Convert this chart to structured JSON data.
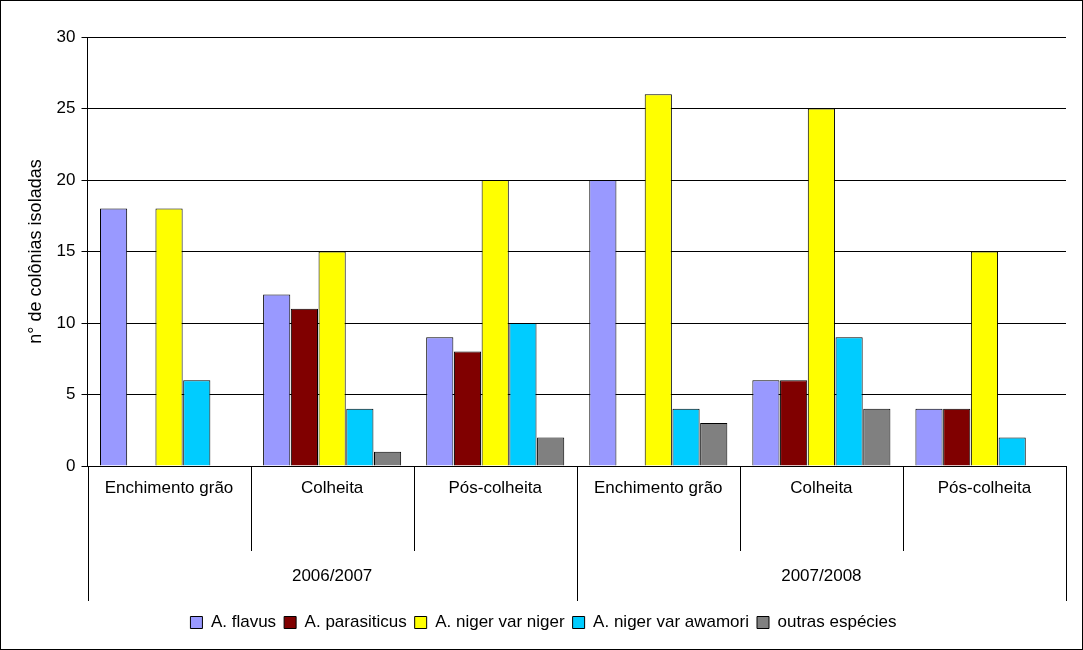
{
  "chart_data": {
    "type": "bar",
    "ylabel": "n° de colônias isoladas",
    "categories": [
      "Enchimento grão",
      "Colheita",
      "Pós-colheita",
      "Enchimento grão",
      "Colheita",
      "Pós-colheita"
    ],
    "annotations": [
      "2006/2007",
      "2007/2008"
    ],
    "series": [
      {
        "name": "A. flavus",
        "color": "#9999ff",
        "values": [
          18,
          12,
          9,
          20,
          6,
          4
        ]
      },
      {
        "name": "A. parasiticus",
        "color": "#800000",
        "values": [
          0,
          11,
          8,
          0,
          6,
          4
        ]
      },
      {
        "name": "A. niger var niger",
        "color": "#ffff00",
        "values": [
          18,
          15,
          20,
          26,
          25,
          15
        ]
      },
      {
        "name": "A. niger var awamori",
        "color": "#00ccff",
        "values": [
          6,
          4,
          10,
          4,
          9,
          2
        ]
      },
      {
        "name": "outras espécies",
        "color": "#808080",
        "values": [
          0,
          1,
          2,
          3,
          4,
          0
        ]
      }
    ],
    "ylim": [
      0,
      30
    ],
    "yticks": [
      0,
      5,
      10,
      15,
      20,
      25,
      30
    ],
    "grid": "y",
    "legend": "bottom"
  }
}
